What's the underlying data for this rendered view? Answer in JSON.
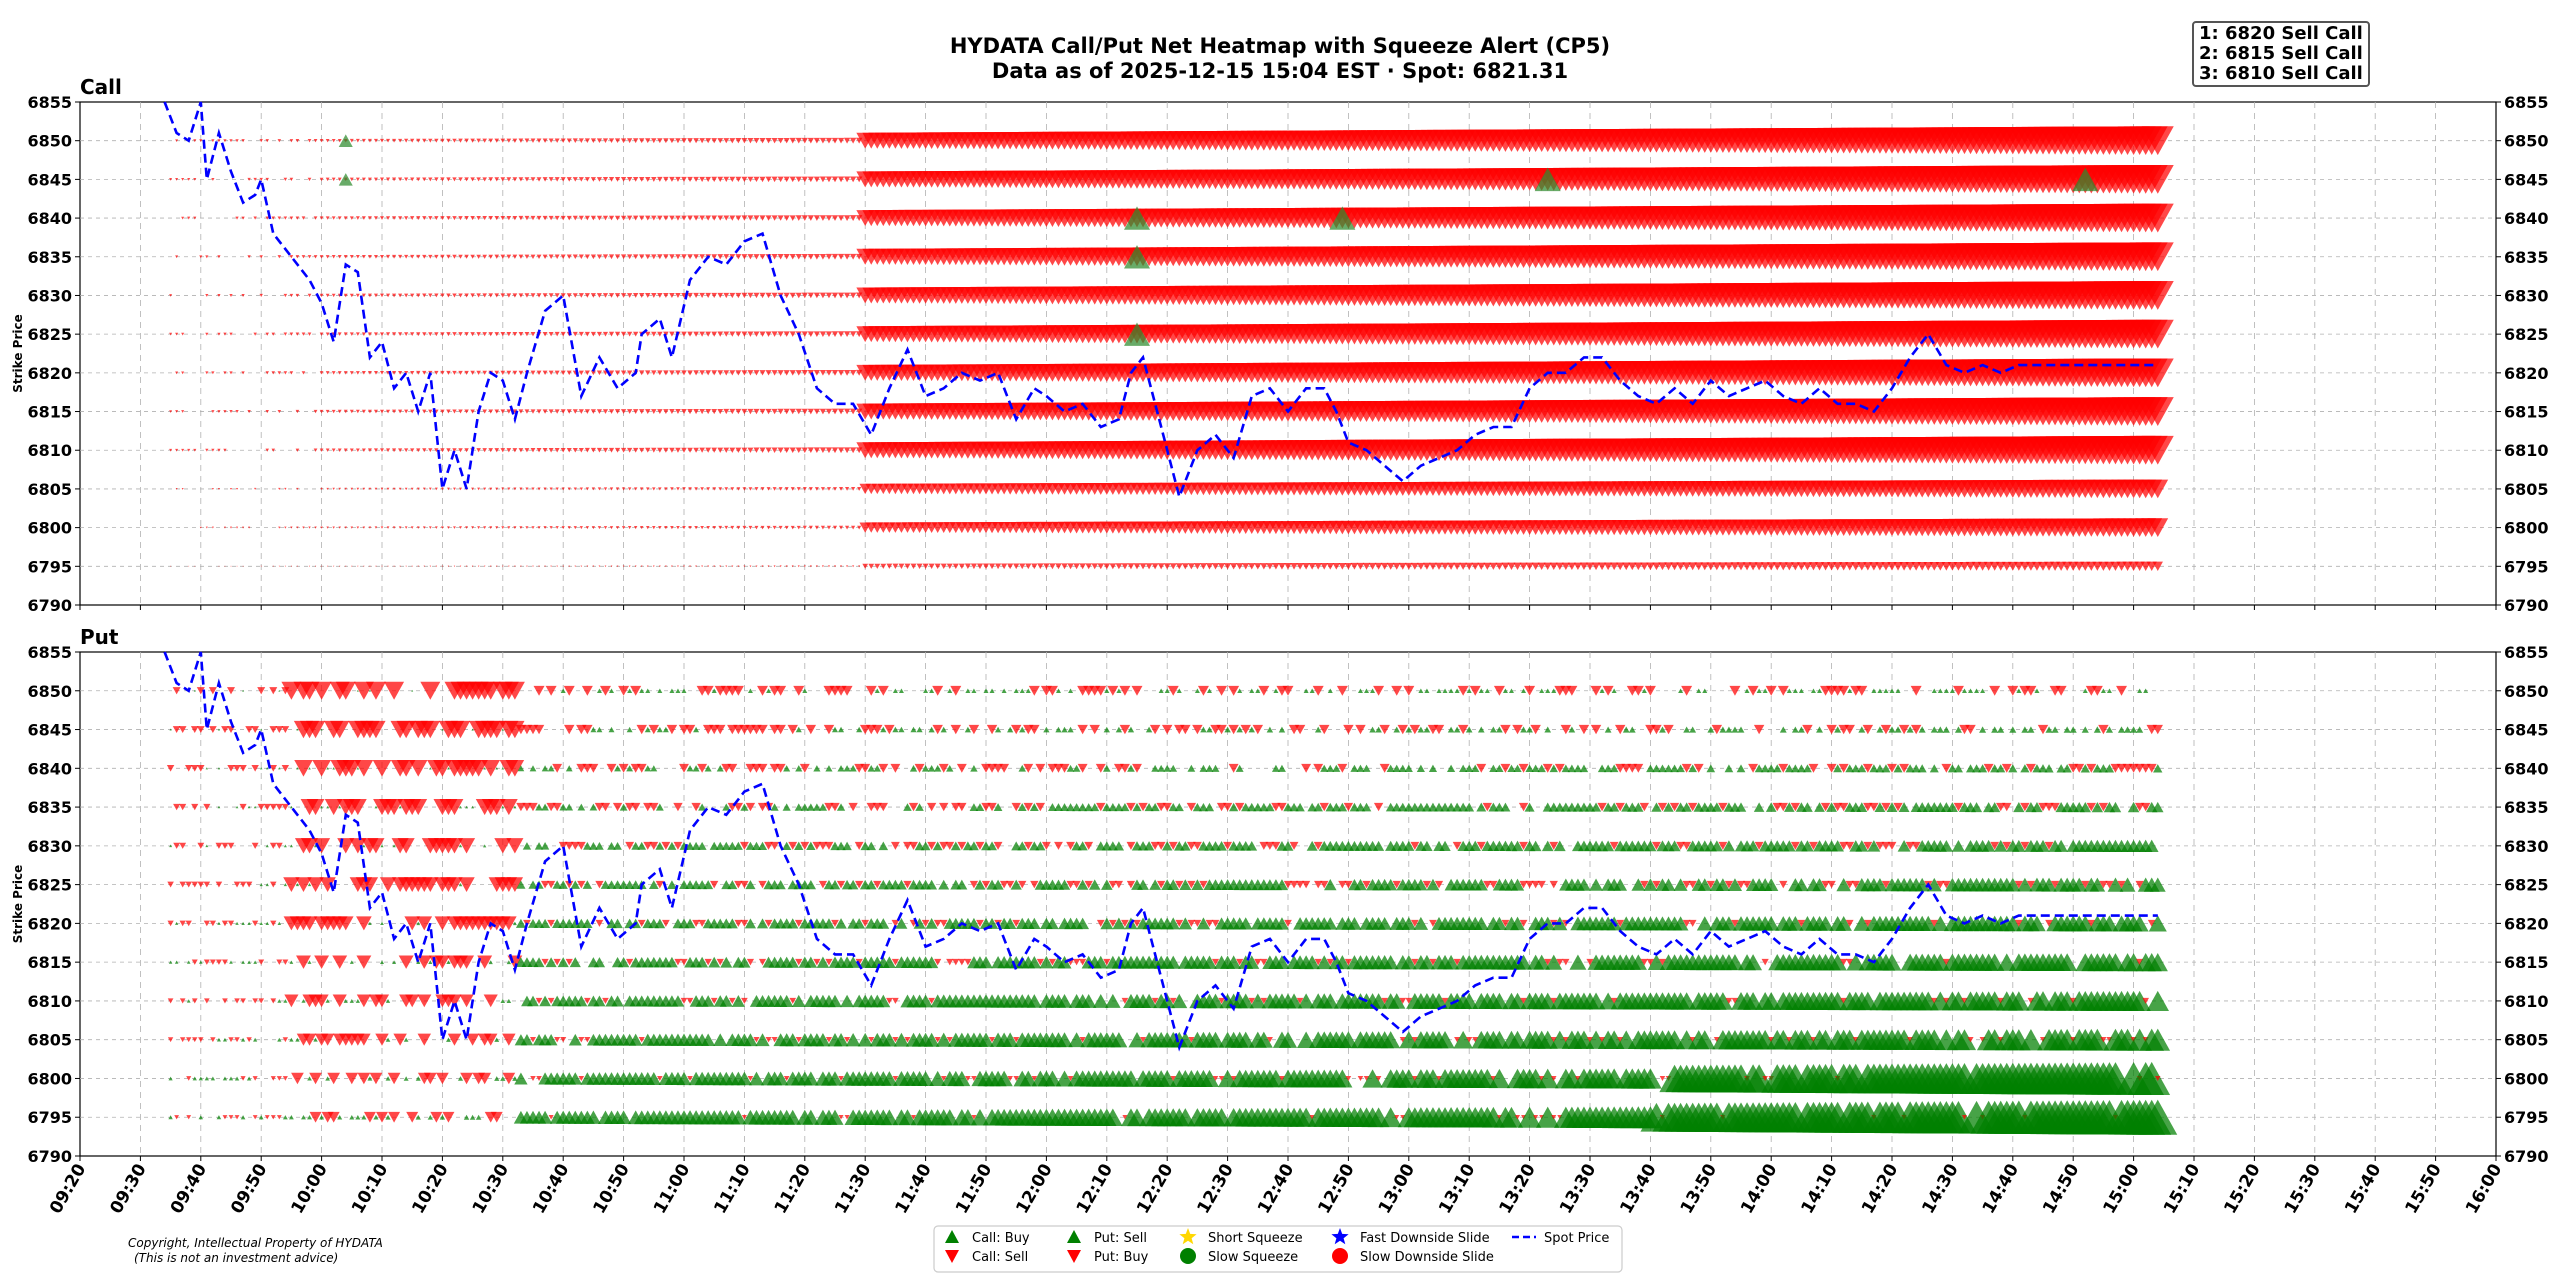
{
  "title_line1": "HYDATA Call/Put Net Heatmap with Squeeze Alert (CP5)",
  "title_line2": "Data as of 2025-12-15 15:04 EST · Spot: 6821.31",
  "alerts": [
    "1: 6820 Sell Call",
    "2: 6815 Sell Call",
    "3: 6810 Sell Call"
  ],
  "copyright_line1": "Copyright, Intellectual Property of HYDATA",
  "copyright_line2": "(This is not an investment advice)",
  "colors": {
    "buy": "#008000",
    "sell": "#ff0000",
    "spot": "#0000ff",
    "short_squeeze": "#ffd700",
    "fast_slide": "#0000ff",
    "slow_slide": "#ff0000",
    "grid": "#b0b0b0"
  },
  "chart_data": [
    {
      "type": "scatter",
      "title": "Call",
      "ylabel": "Strike Price",
      "ylim": [
        6790,
        6855
      ],
      "yticks": [
        "6790",
        "6795",
        "6800",
        "6805",
        "6810",
        "6815",
        "6820",
        "6825",
        "6830",
        "6835",
        "6840",
        "6845",
        "6850",
        "6855"
      ],
      "xticks": [
        "09:20",
        "09:30",
        "09:40",
        "09:50",
        "10:00",
        "10:10",
        "10:20",
        "10:30",
        "10:40",
        "10:50",
        "11:00",
        "11:10",
        "11:20",
        "11:30",
        "11:40",
        "11:50",
        "12:00",
        "12:10",
        "12:20",
        "12:30",
        "12:40",
        "12:50",
        "13:00",
        "13:10",
        "13:20",
        "13:30",
        "13:40",
        "13:50",
        "14:00",
        "14:10",
        "14:20",
        "14:30",
        "14:40",
        "14:50",
        "15:00",
        "15:10",
        "15:20",
        "15:30",
        "15:40",
        "15:50",
        "16:00"
      ],
      "grid": true,
      "strikes": [
        6850,
        6845,
        6840,
        6835,
        6830,
        6825,
        6820,
        6815,
        6810,
        6805,
        6800,
        6795
      ],
      "description_of_marks": "Rows of red down-triangles (Call: Sell) growing in size from ~09:35 to ~15:04; isolated green up-triangles (Call: Buy) at highlighted times",
      "buy_markers": [
        {
          "time": "10:04",
          "strike": 6850
        },
        {
          "time": "10:04",
          "strike": 6845
        },
        {
          "time": "12:15",
          "strike": 6840
        },
        {
          "time": "12:15",
          "strike": 6835
        },
        {
          "time": "12:15",
          "strike": 6825
        },
        {
          "time": "12:49",
          "strike": 6840
        },
        {
          "time": "13:23",
          "strike": 6845
        },
        {
          "time": "14:52",
          "strike": 6845
        }
      ]
    },
    {
      "type": "scatter",
      "title": "Put",
      "ylabel": "Strike Price",
      "ylim": [
        6790,
        6855
      ],
      "yticks": [
        "6790",
        "6795",
        "6800",
        "6805",
        "6810",
        "6815",
        "6820",
        "6825",
        "6830",
        "6835",
        "6840",
        "6845",
        "6850",
        "6855"
      ],
      "xticks": [
        "09:20",
        "09:30",
        "09:40",
        "09:50",
        "10:00",
        "10:10",
        "10:20",
        "10:30",
        "10:40",
        "10:50",
        "11:00",
        "11:10",
        "11:20",
        "11:30",
        "11:40",
        "11:50",
        "12:00",
        "12:10",
        "12:20",
        "12:30",
        "12:40",
        "12:50",
        "13:00",
        "13:10",
        "13:20",
        "13:30",
        "13:40",
        "13:50",
        "14:00",
        "14:10",
        "14:20",
        "14:30",
        "14:40",
        "14:50",
        "15:00",
        "15:10",
        "15:20",
        "15:30",
        "15:40",
        "15:50",
        "16:00"
      ],
      "grid": true,
      "strikes": [
        6850,
        6845,
        6840,
        6835,
        6830,
        6825,
        6820,
        6815,
        6810,
        6805,
        6800,
        6795
      ],
      "description_of_marks": "Red down-triangles (Put: Buy) dominant at high strikes and before 10:35; green up-triangles (Put: Sell) dominant at low strikes, growing towards 15:04"
    }
  ],
  "spot_series": {
    "name": "Spot Price",
    "x": [
      "09:34",
      "09:36",
      "09:38",
      "09:40",
      "09:41",
      "09:43",
      "09:45",
      "09:47",
      "09:49",
      "09:50",
      "09:52",
      "09:55",
      "09:58",
      "10:00",
      "10:02",
      "10:04",
      "10:06",
      "10:08",
      "10:10",
      "10:12",
      "10:14",
      "10:16",
      "10:18",
      "10:20",
      "10:22",
      "10:24",
      "10:26",
      "10:28",
      "10:30",
      "10:32",
      "10:34",
      "10:37",
      "10:40",
      "10:43",
      "10:46",
      "10:49",
      "10:52",
      "10:53",
      "10:56",
      "10:58",
      "11:01",
      "11:04",
      "11:07",
      "11:10",
      "11:13",
      "11:16",
      "11:19",
      "11:22",
      "11:25",
      "11:28",
      "11:31",
      "11:34",
      "11:37",
      "11:40",
      "11:43",
      "11:46",
      "11:49",
      "11:52",
      "11:55",
      "11:58",
      "12:00",
      "12:03",
      "12:06",
      "12:09",
      "12:12",
      "12:14",
      "12:16",
      "12:19",
      "12:22",
      "12:25",
      "12:28",
      "12:31",
      "12:34",
      "12:37",
      "12:40",
      "12:43",
      "12:46",
      "12:48",
      "12:50",
      "12:53",
      "12:56",
      "12:59",
      "13:02",
      "13:05",
      "13:08",
      "13:11",
      "13:14",
      "13:17",
      "13:20",
      "13:23",
      "13:26",
      "13:29",
      "13:32",
      "13:35",
      "13:38",
      "13:41",
      "13:44",
      "13:47",
      "13:50",
      "13:53",
      "13:56",
      "13:59",
      "14:02",
      "14:05",
      "14:08",
      "14:11",
      "14:14",
      "14:17",
      "14:20",
      "14:23",
      "14:26",
      "14:29",
      "14:32",
      "14:35",
      "14:38",
      "14:41",
      "14:44",
      "14:47",
      "14:50",
      "14:53",
      "14:56",
      "14:59",
      "15:02",
      "15:04"
    ],
    "y": [
      6857,
      6851,
      6850,
      6856,
      6845,
      6851,
      6846,
      6842,
      6843,
      6845,
      6838,
      6835,
      6832,
      6829,
      6824,
      6834,
      6833,
      6822,
      6824,
      6818,
      6820,
      6815,
      6820,
      6805,
      6810,
      6805,
      6815,
      6820,
      6819,
      6814,
      6820,
      6828,
      6830,
      6817,
      6822,
      6818,
      6820,
      6825,
      6827,
      6822,
      6832,
      6835,
      6834,
      6837,
      6838,
      6830,
      6825,
      6818,
      6816,
      6816,
      6812,
      6818,
      6823,
      6817,
      6818,
      6820,
      6819,
      6820,
      6814,
      6818,
      6817,
      6815,
      6816,
      6813,
      6814,
      6820,
      6822,
      6813,
      6804,
      6810,
      6812,
      6809,
      6817,
      6818,
      6815,
      6818,
      6818,
      6815,
      6811,
      6810,
      6808,
      6806,
      6808,
      6809,
      6810,
      6812,
      6813,
      6813,
      6818,
      6820,
      6820,
      6822,
      6822,
      6819,
      6817,
      6816,
      6818,
      6816,
      6819,
      6817,
      6818,
      6819,
      6817,
      6816,
      6818,
      6816,
      6816,
      6815,
      6818,
      6822,
      6825,
      6821,
      6820,
      6821,
      6820,
      6821,
      6821,
      6821,
      6821,
      6821,
      6821,
      6821,
      6821,
      6821
    ]
  },
  "legend": {
    "call_buy": "Call: Buy",
    "call_sell": "Call: Sell",
    "put_sell": "Put: Sell",
    "put_buy": "Put: Buy",
    "short_squeeze": "Short Squeeze",
    "slow_squeeze": "Slow Squeeze",
    "fast_slide": "Fast Downside Slide",
    "slow_slide": "Slow Downside Slide",
    "spot": "Spot Price"
  }
}
